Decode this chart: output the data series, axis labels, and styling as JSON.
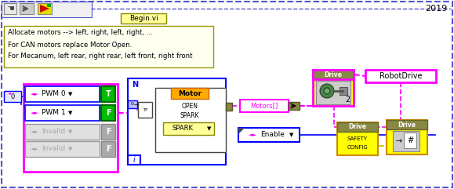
{
  "bg_color": "#ffffff",
  "outer_border_color": "#5555cc",
  "title_year": "2019",
  "begin_vi_label": "Begin.vi",
  "comment_text": [
    "Allocate motors --> left, right, left, right, ...",
    "For CAN motors replace Motor Open.",
    "For Mecanum, left rear, right rear, left front, right front"
  ],
  "comment_bg": "#fffff0",
  "magenta": "#ff00ff",
  "blue": "#0000ff",
  "yellow": "#ffff00",
  "orange": "#ffaa00",
  "dark_yellow": "#cccc00",
  "green": "#008800",
  "light_green": "#00cc00",
  "gray": "#aaaaaa",
  "white": "#ffffff",
  "black": "#000000",
  "dark_gray": "#666666",
  "drive_header": "#777700",
  "drive_bg": "#ffff00",
  "motors_border": "#888866"
}
